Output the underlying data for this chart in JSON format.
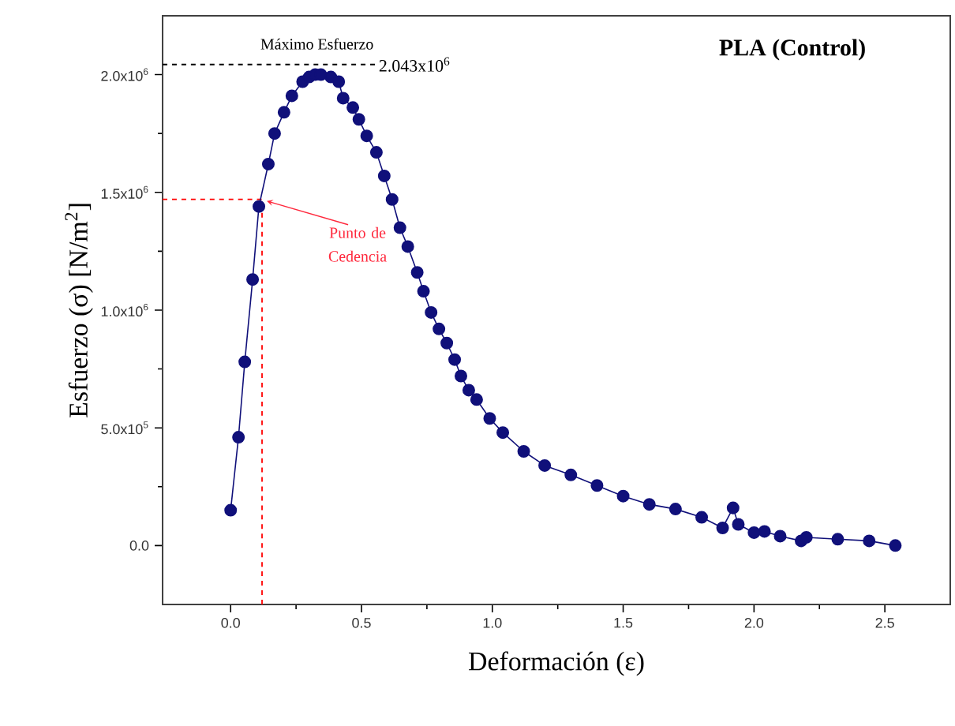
{
  "chart_data": {
    "type": "line",
    "title": "PLA (Control)",
    "xlabel": "Deformación  (ε)",
    "ylabel": "Esfuerzo (σ)  [N/m$^{2}$]",
    "series": [
      {
        "color": "#10107a",
        "marker": "circle",
        "line_style": "solid",
        "x": [
          0.0,
          0.03,
          0.054,
          0.084,
          0.108,
          0.144,
          0.168,
          0.204,
          0.234,
          0.275,
          0.3,
          0.323,
          0.345,
          0.383,
          0.413,
          0.43,
          0.467,
          0.49,
          0.52,
          0.557,
          0.587,
          0.617,
          0.647,
          0.677,
          0.713,
          0.737,
          0.766,
          0.796,
          0.826,
          0.856,
          0.88,
          0.91,
          0.94,
          0.99,
          1.04,
          1.12,
          1.2,
          1.3,
          1.4,
          1.5,
          1.6,
          1.7,
          1.8,
          1.88,
          1.92,
          1.94,
          2.0,
          2.04,
          2.1,
          2.18,
          2.2,
          2.32,
          2.44,
          2.54
        ],
        "values": [
          150000,
          460000,
          780000,
          1130000,
          1440000,
          1620000,
          1750000,
          1840000,
          1910000,
          1970000,
          1990000,
          2000000,
          2000000,
          1990000,
          1970000,
          1900000,
          1860000,
          1810000,
          1740000,
          1670000,
          1570000,
          1470000,
          1350000,
          1270000,
          1160000,
          1080000,
          990000,
          920000,
          860000,
          790000,
          720000,
          660000,
          620000,
          540000,
          480000,
          400000,
          340000,
          300000,
          255000,
          210000,
          175000,
          155000,
          120000,
          75000,
          160000,
          90000,
          55000,
          60000,
          40000,
          20000,
          35000,
          27000,
          20000,
          0
        ]
      }
    ],
    "annotations": [
      {
        "text": "Máximo Esfuerzo",
        "x": 0.33,
        "y": 2043000
      },
      {
        "text": "Punto de Cedencia",
        "x": 0.12,
        "y": 1470000
      }
    ],
    "ref_lines": [
      {
        "axis": "y",
        "value": 2043000,
        "label": "2.043x10$^{6}$",
        "color": "#000000",
        "line_style": "dashed"
      },
      {
        "axis": "y",
        "value": 1470000,
        "color": "#ff0000",
        "line_style": "dashed"
      },
      {
        "axis": "x",
        "value": 0.12,
        "color": "#ff0000",
        "line_style": "dashed"
      }
    ],
    "xlim": [
      -0.26,
      2.75
    ],
    "ylim": [
      -250000,
      2250000
    ],
    "xticks": [
      {
        "value": 0,
        "label": "0.0"
      },
      {
        "value": 0.5,
        "label": "0.5"
      },
      {
        "value": 1,
        "label": "1.0"
      },
      {
        "value": 1.5,
        "label": "1.5"
      },
      {
        "value": 2,
        "label": "2.0"
      },
      {
        "value": 2.5,
        "label": "2.5"
      }
    ],
    "yticks": [
      {
        "value": 0,
        "label": "0.0"
      },
      {
        "value": 500000,
        "label": "5.0x10$^{5}$"
      },
      {
        "value": 1000000,
        "label": "1.0x10$^{6}$"
      },
      {
        "value": 1500000,
        "label": "1.5x10$^{6}$"
      },
      {
        "value": 2000000,
        "label": "2.0x10$^{6}$"
      }
    ],
    "grid": false
  }
}
